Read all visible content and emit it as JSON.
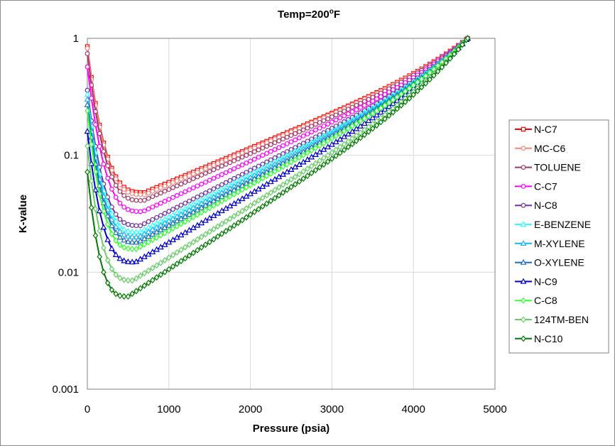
{
  "chart_data": {
    "type": "line",
    "title": "Temp=200",
    "title_superscript": "o",
    "title_unit": "F",
    "xlabel": "Pressure (psia)",
    "ylabel": "K-value",
    "xlim": [
      0,
      5000
    ],
    "ylim": [
      0.001,
      1
    ],
    "y_scale": "log",
    "grid": true,
    "legend_position": "right",
    "x_ticks": [
      0,
      1000,
      2000,
      3000,
      4000,
      5000
    ],
    "x_tick_labels": [
      "0",
      "1000",
      "2000",
      "3000",
      "4000",
      "5000"
    ],
    "y_ticks": [
      0.001,
      0.01,
      0.1,
      1
    ],
    "y_tick_labels": [
      "0.001",
      "0.01",
      "0.1",
      "1"
    ],
    "convergence_pressure": 4665,
    "series": [
      {
        "name": "N-C7",
        "color": "#ff0000",
        "marker": "square",
        "k0": 0.85,
        "kmin": 0.048,
        "pmin": 700
      },
      {
        "name": "MC-C6",
        "color": "#f4877c",
        "marker": "circle",
        "k0": 0.82,
        "kmin": 0.046,
        "pmin": 700
      },
      {
        "name": "TOLUENE",
        "color": "#9e3a6a",
        "marker": "circle",
        "k0": 0.74,
        "kmin": 0.041,
        "pmin": 690
      },
      {
        "name": "C-C7",
        "color": "#ff00ff",
        "marker": "circle",
        "k0": 0.57,
        "kmin": 0.033,
        "pmin": 680
      },
      {
        "name": "N-C8",
        "color": "#7030a0",
        "marker": "circle",
        "k0": 0.36,
        "kmin": 0.025,
        "pmin": 650
      },
      {
        "name": "E-BENZENE",
        "color": "#33ffff",
        "marker": "triangle",
        "k0": 0.33,
        "kmin": 0.022,
        "pmin": 640
      },
      {
        "name": "M-XYLENE",
        "color": "#1eb4f0",
        "marker": "triangle",
        "k0": 0.3,
        "kmin": 0.02,
        "pmin": 630
      },
      {
        "name": "O-XYLENE",
        "color": "#1f6eb4",
        "marker": "triangle",
        "k0": 0.27,
        "kmin": 0.018,
        "pmin": 620
      },
      {
        "name": "N-C9",
        "color": "#0000cc",
        "marker": "triangle",
        "k0": 0.16,
        "kmin": 0.0122,
        "pmin": 590
      },
      {
        "name": "C-C8",
        "color": "#33ff33",
        "marker": "diamond",
        "k0": 0.24,
        "kmin": 0.0158,
        "pmin": 600
      },
      {
        "name": "124TM-BEN",
        "color": "#66cc66",
        "marker": "diamond",
        "k0": 0.12,
        "kmin": 0.0085,
        "pmin": 560
      },
      {
        "name": "N-C10",
        "color": "#007a00",
        "marker": "diamond",
        "k0": 0.072,
        "kmin": 0.0062,
        "pmin": 500
      }
    ]
  }
}
